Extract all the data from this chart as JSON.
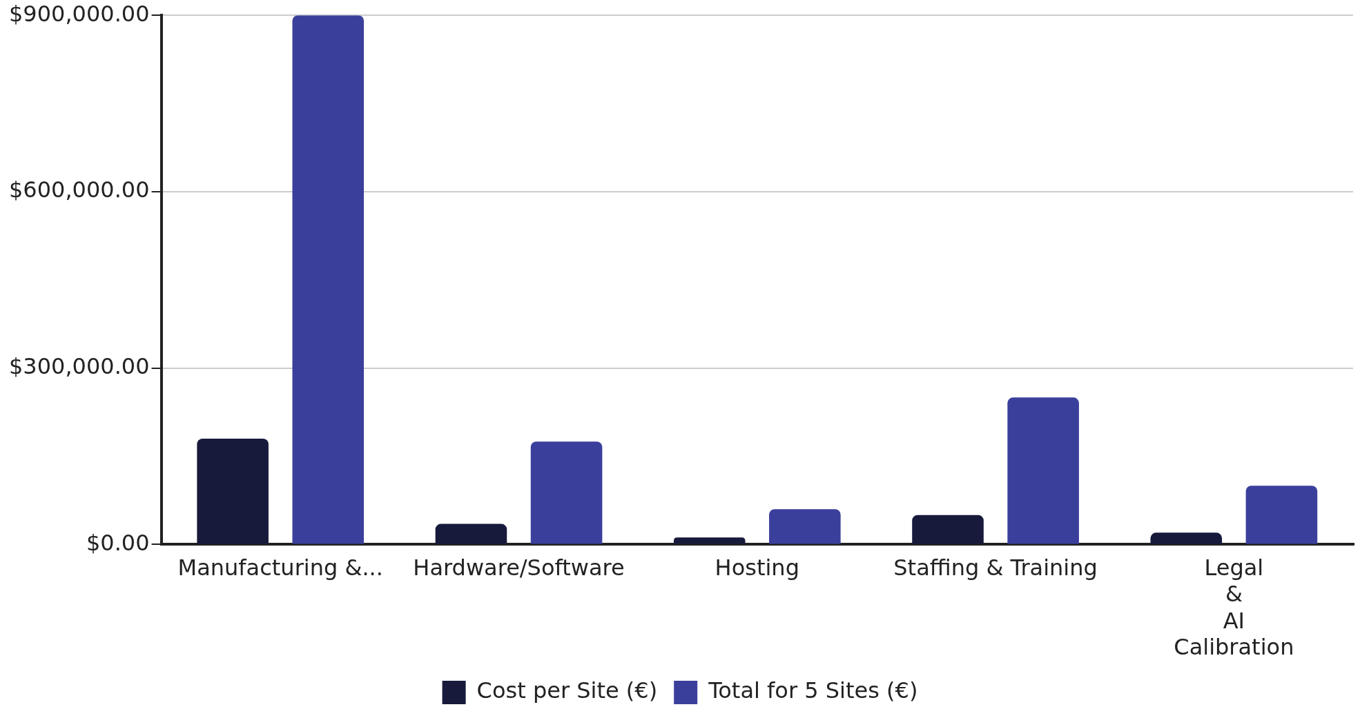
{
  "chart_data": {
    "type": "bar",
    "categories": [
      "Manufacturing &...",
      "Hardware/Software",
      "Hosting",
      "Staffing & Training",
      "Legal\n&\nAI\nCalibration"
    ],
    "series": [
      {
        "name": "Cost per Site (€)",
        "color": "#171a3b",
        "values": [
          180000,
          35000,
          12000,
          50000,
          20000
        ]
      },
      {
        "name": "Total for 5 Sites (€)",
        "color": "#3b3f9c",
        "values": [
          900000,
          175000,
          60000,
          250000,
          100000
        ]
      }
    ],
    "ylim": [
      0,
      900000
    ],
    "yticks": [
      {
        "value": 0,
        "label": "$0.00"
      },
      {
        "value": 300000,
        "label": "$300,000.00"
      },
      {
        "value": 600000,
        "label": "$600,000.00"
      },
      {
        "value": 900000,
        "label": "$900,000.00"
      }
    ],
    "grid": "y",
    "legend": "bottom"
  }
}
